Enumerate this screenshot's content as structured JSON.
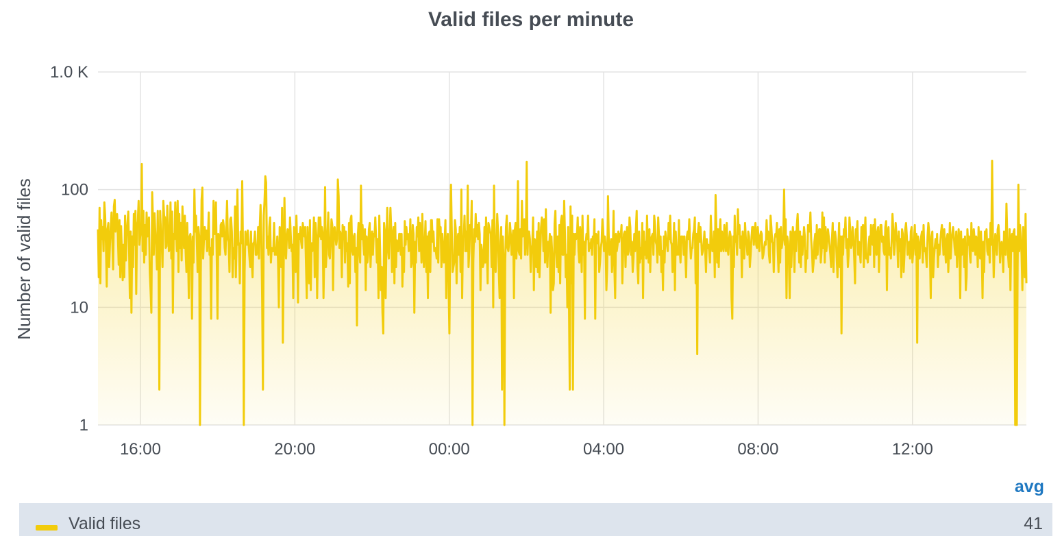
{
  "chart_data": {
    "type": "area",
    "title": "Valid files per minute",
    "ylabel": "Number of valid files",
    "xlabel": "",
    "yscale": "log",
    "ylim": [
      1,
      1000
    ],
    "y_ticks": [
      {
        "value": 1,
        "label": "1"
      },
      {
        "value": 10,
        "label": "10"
      },
      {
        "value": 100,
        "label": "100"
      },
      {
        "value": 1000,
        "label": "1.0 K"
      }
    ],
    "x_range_hours": [
      14.9,
      38.95
    ],
    "x_ticks": [
      {
        "hour": 16,
        "label": "16:00"
      },
      {
        "hour": 20,
        "label": "20:00"
      },
      {
        "hour": 24,
        "label": "00:00"
      },
      {
        "hour": 28,
        "label": "04:00"
      },
      {
        "hour": 32,
        "label": "08:00"
      },
      {
        "hour": 36,
        "label": "12:00"
      }
    ],
    "grid": true,
    "legend_position": "bottom",
    "series": [
      {
        "name": "Valid files",
        "color": "#f2cc0c",
        "avg": "41",
        "values": [
          46,
          18,
          70,
          16,
          55,
          38,
          48,
          30,
          78,
          60,
          34,
          15,
          46,
          52,
          22,
          34,
          48,
          64,
          38,
          21,
          72,
          82,
          44,
          58,
          62,
          41,
          23,
          55,
          18,
          49,
          30,
          17,
          34,
          18,
          60,
          25,
          40,
          52,
          65,
          33,
          12,
          44,
          9,
          40,
          22,
          62,
          34,
          66,
          13,
          48,
          54,
          80,
          34,
          40,
          45,
          165,
          30,
          66,
          24,
          50,
          28,
          64,
          40,
          48,
          58,
          20,
          14,
          9,
          95,
          55,
          28,
          63,
          42,
          34,
          21,
          66,
          23,
          2,
          66,
          44,
          36,
          22,
          80,
          60,
          58,
          32,
          33,
          73,
          48,
          30,
          32,
          78,
          26,
          65,
          9,
          42,
          38,
          78,
          45,
          30,
          80,
          20,
          62,
          32,
          52,
          25,
          72,
          45,
          32,
          60,
          30,
          20,
          52,
          28,
          12,
          40,
          42,
          28,
          8,
          40,
          24,
          100,
          44,
          60,
          38,
          20,
          48,
          40,
          1,
          20,
          82,
          104,
          26,
          38,
          48,
          38,
          45,
          30,
          40,
          64,
          28,
          32,
          8,
          38,
          28,
          80,
          42,
          42,
          78,
          28,
          8,
          42,
          38,
          28,
          50,
          52,
          40,
          55,
          48,
          32,
          28,
          48,
          80,
          38,
          36,
          20,
          56,
          58,
          44,
          18,
          32,
          26,
          72,
          18,
          40,
          100,
          34,
          35,
          16,
          44,
          35,
          118,
          30,
          1,
          20,
          44,
          36,
          34,
          45,
          34,
          27,
          22,
          44,
          24,
          18,
          35,
          36,
          44,
          28,
          28,
          32,
          48,
          26,
          48,
          74,
          40,
          12,
          2,
          60,
          80,
          130,
          115,
          32,
          40,
          28,
          48,
          58,
          24,
          32,
          30,
          30,
          52,
          28,
          32,
          28,
          40,
          24,
          10,
          48,
          38,
          22,
          70,
          5,
          22,
          85,
          34,
          26,
          40,
          46,
          42,
          32,
          58,
          40,
          30,
          34,
          12,
          48,
          44,
          20,
          60,
          34,
          11,
          42,
          38,
          48,
          36,
          32,
          52,
          45,
          40,
          48,
          24,
          12,
          48,
          30,
          16,
          55,
          14,
          35,
          30,
          36,
          58,
          18,
          52,
          40,
          12,
          30,
          58,
          40,
          58,
          38,
          48,
          42,
          12,
          30,
          105,
          22,
          30,
          42,
          64,
          28,
          26,
          36,
          56,
          50,
          14,
          46,
          48,
          40,
          34,
          38,
          122,
          88,
          32,
          44,
          40,
          18,
          50,
          38,
          48,
          24,
          44,
          30,
          35,
          15,
          52,
          16,
          56,
          60,
          30,
          28,
          40,
          42,
          20,
          32,
          7,
          40,
          52,
          30,
          24,
          108,
          38,
          50,
          36,
          28,
          46,
          14,
          40,
          24,
          28,
          46,
          52,
          22,
          34,
          44,
          28,
          42,
          40,
          58,
          38,
          24,
          38,
          12,
          60,
          32,
          14,
          22,
          9,
          6,
          52,
          44,
          12,
          35,
          70,
          32,
          26,
          42,
          70,
          46,
          20,
          40,
          48,
          16,
          52,
          22,
          37,
          30,
          30,
          42,
          42,
          28,
          42,
          15,
          32,
          20,
          54,
          34,
          48,
          38,
          42,
          30,
          32,
          56,
          22,
          24,
          50,
          42,
          9,
          36,
          24,
          48,
          40,
          58,
          30,
          52,
          40,
          24,
          62,
          34,
          22,
          34,
          54,
          20,
          40,
          12,
          42,
          44,
          20,
          55,
          55,
          36,
          44,
          30,
          32,
          30,
          26,
          56,
          24,
          56,
          44,
          48,
          22,
          42,
          30,
          24,
          36,
          55,
          12,
          34,
          42,
          15,
          6,
          40,
          110,
          44,
          20,
          22,
          24,
          55,
          46,
          16,
          36,
          42,
          28,
          48,
          20,
          100,
          12,
          40,
          40,
          60,
          30,
          44,
          30,
          108,
          22,
          30,
          50,
          42,
          80,
          1,
          24,
          46,
          36,
          62,
          40,
          50,
          38,
          52,
          42,
          14,
          34,
          30,
          22,
          24,
          48,
          24,
          58,
          30,
          16,
          52,
          48,
          44,
          42,
          22,
          55,
          10,
          108,
          30,
          20,
          32,
          62,
          44,
          20,
          12,
          36,
          48,
          2,
          40,
          24,
          1,
          24,
          48,
          60,
          32,
          30,
          36,
          52,
          42,
          28,
          36,
          45,
          12,
          45,
          52,
          26,
          40,
          118,
          30,
          28,
          46,
          26,
          80,
          40,
          54,
          56,
          28,
          40,
          172,
          28,
          44,
          44,
          38,
          20,
          30,
          34,
          58,
          14,
          38,
          34,
          22,
          44,
          20,
          52,
          18,
          30,
          48,
          58,
          52,
          30,
          56,
          24,
          68,
          32,
          22,
          36,
          30,
          42,
          9,
          40,
          28,
          14,
          16,
          52,
          66,
          30,
          22,
          40,
          20,
          50,
          16,
          54,
          60,
          28,
          28,
          80,
          42,
          18,
          28,
          10,
          48,
          12,
          2,
          72,
          16,
          60,
          2,
          42,
          28,
          42,
          38,
          40,
          58,
          30,
          24,
          48,
          36,
          20,
          60,
          28,
          36,
          8,
          34,
          42,
          38,
          60,
          30,
          35,
          32,
          38,
          28,
          40,
          36,
          56,
          8,
          42,
          38,
          35,
          44,
          20,
          24,
          32,
          36,
          56,
          45,
          30,
          40,
          34,
          14,
          22,
          88,
          38,
          28,
          32,
          38,
          20,
          28,
          66,
          22,
          12,
          42,
          30,
          34,
          44,
          36,
          42,
          40,
          50,
          16,
          30,
          42,
          44,
          22,
          40,
          48,
          28,
          30,
          58,
          48,
          28,
          36,
          20,
          26,
          42,
          30,
          46,
          66,
          22,
          16,
          44,
          24,
          32,
          26,
          52,
          12,
          44,
          28,
          36,
          26,
          60,
          32,
          24,
          46,
          20,
          38,
          40,
          42,
          28,
          60,
          50,
          36,
          34,
          24,
          58,
          40,
          28,
          40,
          20,
          30,
          14,
          40,
          24,
          44,
          38,
          34,
          30,
          52,
          38,
          60,
          36,
          34,
          20,
          32,
          52,
          14,
          44,
          28,
          30,
          28,
          55,
          32,
          24,
          40,
          38,
          40,
          28,
          40,
          28,
          18,
          40,
          44,
          38,
          56,
          36,
          26,
          32,
          32,
          42,
          46,
          58,
          16,
          42,
          4,
          44,
          52,
          36,
          48,
          38,
          28,
          30,
          34,
          44,
          30,
          20,
          38,
          32,
          34,
          30,
          24,
          60,
          38,
          30,
          30,
          44,
          18,
          90,
          46,
          24,
          46,
          22,
          42,
          56,
          30,
          44,
          34,
          30,
          50,
          38,
          30,
          52,
          32,
          28,
          38,
          44,
          40,
          12,
          8,
          40,
          22,
          60,
          36,
          40,
          28,
          68,
          42,
          50,
          32,
          40,
          18,
          44,
          30,
          26,
          52,
          38,
          34,
          28,
          44,
          40,
          22,
          28,
          38,
          48,
          48,
          34,
          44,
          52,
          34,
          32,
          48,
          38,
          30,
          40,
          44,
          42,
          26,
          28,
          32,
          36,
          34,
          55,
          38,
          44,
          28,
          24,
          60,
          48,
          36,
          35,
          20,
          38,
          42,
          40,
          52,
          30,
          20,
          46,
          24,
          48,
          32,
          36,
          40,
          100,
          34,
          56,
          12,
          40,
          36,
          26,
          12,
          44,
          22,
          36,
          48,
          38,
          20,
          44,
          30,
          50,
          62,
          38,
          24,
          44,
          22,
          40,
          28,
          36,
          48,
          40,
          20,
          30,
          26,
          50,
          44,
          44,
          64,
          38,
          30,
          20,
          24,
          36,
          42,
          26,
          50,
          28,
          36,
          46,
          46,
          24,
          30,
          64,
          32,
          58,
          24,
          48,
          30,
          36,
          46,
          40,
          34,
          28,
          22,
          38,
          52,
          20,
          42,
          44,
          38,
          26,
          18,
          32,
          52,
          22,
          40,
          6,
          40,
          28,
          46,
          40,
          58,
          32,
          38,
          22,
          28,
          58,
          46,
          32,
          34,
          48,
          40,
          26,
          16,
          46,
          40,
          54,
          28,
          36,
          30,
          24,
          48,
          40,
          50,
          22,
          40,
          58,
          26,
          28,
          24,
          34,
          40,
          28,
          50,
          38,
          34,
          50,
          22,
          56,
          34,
          28,
          44,
          48,
          20,
          34,
          50,
          50,
          36,
          40,
          30,
          28,
          48,
          54,
          14,
          42,
          48,
          28,
          32,
          26,
          38,
          62,
          46,
          28,
          34,
          52,
          42,
          36,
          22,
          44,
          30,
          38,
          18,
          46,
          42,
          20,
          28,
          46,
          52,
          40,
          28,
          34,
          36,
          26,
          44,
          48,
          24,
          30,
          38,
          50,
          28,
          42,
          5,
          40,
          30,
          26,
          36,
          40,
          44,
          24,
          50,
          30,
          32,
          28,
          22,
          40,
          52,
          44,
          30,
          12,
          40,
          44,
          18,
          26,
          32,
          38,
          32,
          42,
          22,
          34,
          28,
          36,
          44,
          50,
          40,
          28,
          46,
          32,
          24,
          38,
          42,
          20,
          30,
          52,
          26,
          36,
          42,
          48,
          40,
          32,
          28,
          44,
          22,
          30,
          46,
          36,
          12,
          44,
          28,
          32,
          38,
          22,
          40,
          14,
          18,
          46,
          34,
          40,
          28,
          24,
          52,
          32,
          30,
          46,
          38,
          28,
          40,
          36,
          22,
          48,
          34,
          26,
          44,
          30,
          12,
          36,
          20,
          44,
          40,
          46,
          30,
          28,
          38,
          24,
          52,
          34,
          176,
          40,
          18,
          30,
          42,
          36,
          28,
          46,
          50,
          40,
          24,
          32,
          36,
          30,
          20,
          44,
          40,
          28,
          76,
          40,
          28,
          22,
          46,
          14,
          38,
          42,
          30,
          44,
          46,
          1,
          40,
          1,
          22,
          110,
          30,
          50,
          40,
          28,
          14,
          48,
          36,
          18,
          62,
          16
        ]
      }
    ]
  }
}
